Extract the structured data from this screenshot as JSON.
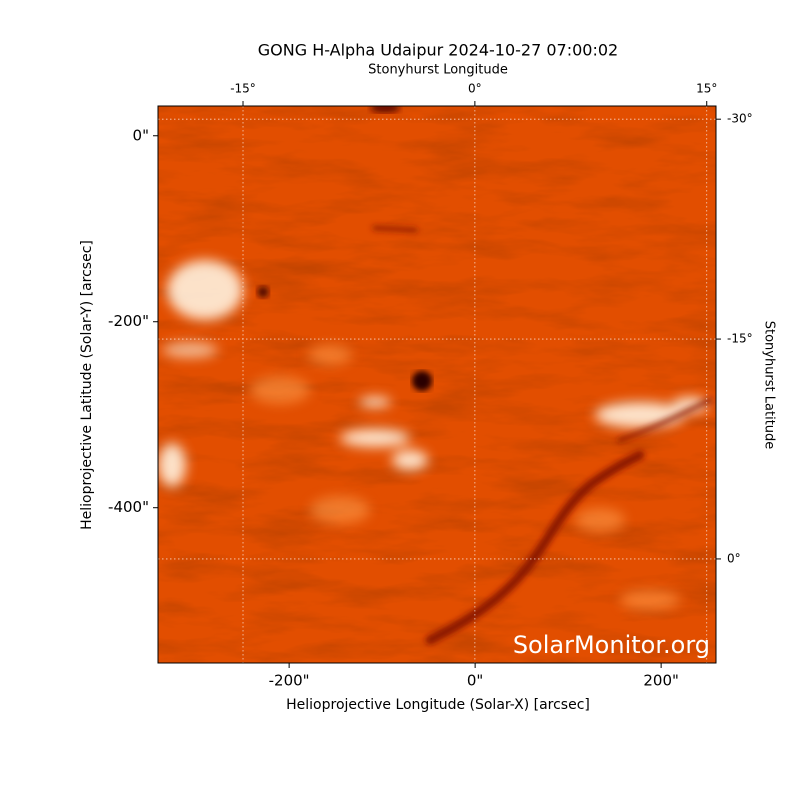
{
  "chart_data": {
    "type": "image",
    "title": "GONG H-Alpha Udaipur 2024-10-27 07:00:02",
    "xlabel": "Helioprojective Longitude (Solar-X) [arcsec]",
    "ylabel": "Helioprojective Latitude (Solar-Y) [arcsec]",
    "x2label": "Stonyhurst Longitude",
    "y2label": "Stonyhurst Latitude",
    "watermark": "SolarMonitor.org",
    "xlim": [
      -341,
      259
    ],
    "ylim": [
      -567,
      32
    ],
    "xticks": [
      {
        "value": -200,
        "label": "-200\""
      },
      {
        "value": 0,
        "label": "0\""
      },
      {
        "value": 200,
        "label": "200\""
      }
    ],
    "yticks": [
      {
        "value": 0,
        "label": "0\""
      },
      {
        "value": -200,
        "label": "-200\""
      },
      {
        "value": -400,
        "label": "-400\""
      }
    ],
    "x2lim": [
      -20.5,
      15.6
    ],
    "x2ticks": [
      {
        "value": -15,
        "label": "-15°"
      },
      {
        "value": 0,
        "label": "0°"
      },
      {
        "value": 15,
        "label": "15°"
      }
    ],
    "y2lim": [
      7.1,
      -30.9
    ],
    "y2ticks": [
      {
        "value": 0,
        "label": "0°"
      },
      {
        "value": -15,
        "label": "-15°"
      },
      {
        "value": -30,
        "label": "-30°"
      }
    ],
    "grid": true
  }
}
